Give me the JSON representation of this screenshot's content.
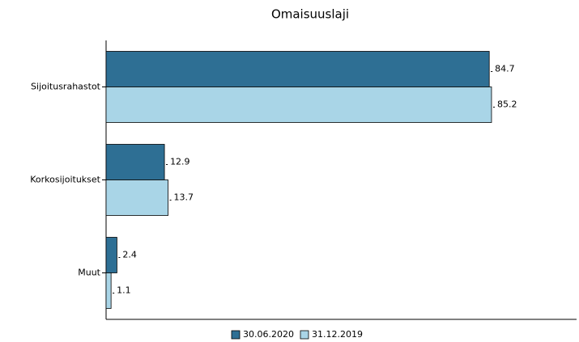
{
  "chart_data": {
    "type": "bar",
    "orientation": "horizontal",
    "title": "Omaisuuslaji",
    "categories": [
      "Sijoitusrahastot",
      "Korkosijoitukset",
      "Muut"
    ],
    "series": [
      {
        "name": "30.06.2020",
        "color": "#2e6f94",
        "values": [
          84.7,
          12.9,
          2.4
        ]
      },
      {
        "name": "31.12.2019",
        "color": "#a9d5e7",
        "values": [
          85.2,
          13.7,
          1.1
        ]
      }
    ],
    "xlim": [
      0,
      104
    ],
    "legend": "bottom"
  }
}
